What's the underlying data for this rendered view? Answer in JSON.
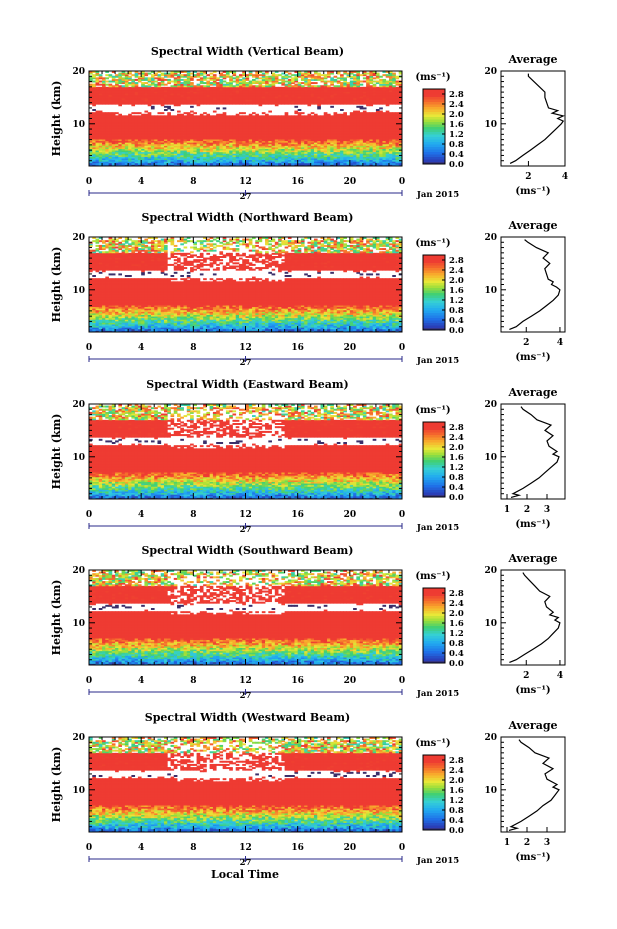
{
  "figure": {
    "xlabel_bottom": "Local Time",
    "date_label": "Jan 2015",
    "day_label": "27",
    "ylabel": "Height (km)",
    "colorbar_unit": "(ms⁻¹)",
    "colorbar_ticks": [
      "2.8",
      "2.4",
      "2.0",
      "1.6",
      "1.2",
      "0.8",
      "0.4",
      "0.0"
    ],
    "x_ticks": [
      "0",
      "4",
      "8",
      "12",
      "16",
      "20",
      "0"
    ],
    "y_ticks": [
      "20",
      "10"
    ],
    "avg_title": "Average",
    "avg_unit": "(ms⁻¹)"
  },
  "chart_data": [
    {
      "type": "heatmap",
      "title": "Spectral Width (Vertical Beam)",
      "xlabel": "Local Time",
      "ylabel": "Height (km)",
      "xlim": [
        0,
        24
      ],
      "ylim": [
        2,
        20
      ],
      "profile": {
        "title": "Average",
        "xticks": [
          "2",
          "4"
        ],
        "xlim": [
          0.5,
          4
        ],
        "unit": "(ms⁻¹)",
        "height": [
          2.5,
          3,
          4,
          5,
          6,
          7,
          8,
          9,
          10,
          10.5,
          11,
          11.5,
          12,
          12.5,
          13,
          14,
          15,
          16,
          17,
          18,
          19,
          19.5
        ],
        "width": [
          1.0,
          1.3,
          1.7,
          2.1,
          2.5,
          2.9,
          3.2,
          3.5,
          3.8,
          3.9,
          3.6,
          3.9,
          3.3,
          3.6,
          3.1,
          3.0,
          2.9,
          2.9,
          2.6,
          2.3,
          2.0,
          2.0
        ]
      }
    },
    {
      "type": "heatmap",
      "title": "Spectral Width (Northward Beam)",
      "xlabel": "Local Time",
      "ylabel": "Height (km)",
      "xlim": [
        0,
        24
      ],
      "ylim": [
        2,
        20
      ],
      "profile": {
        "title": "Average",
        "xticks": [
          "2",
          "4"
        ],
        "xlim": [
          0.5,
          4.3
        ],
        "unit": "(ms⁻¹)",
        "height": [
          2.5,
          3,
          4,
          5,
          6,
          7,
          8,
          9,
          10,
          10.5,
          11,
          11.5,
          12,
          13,
          14,
          15,
          16,
          17,
          18,
          19,
          19.5
        ],
        "width": [
          1.0,
          1.4,
          1.8,
          2.3,
          2.8,
          3.2,
          3.6,
          3.9,
          4.0,
          3.8,
          3.5,
          3.6,
          3.3,
          3.2,
          3.1,
          3.4,
          3.0,
          3.3,
          2.6,
          2.1,
          1.9
        ]
      }
    },
    {
      "type": "heatmap",
      "title": "Spectral Width (Eastward Beam)",
      "xlabel": "Local Time",
      "ylabel": "Height (km)",
      "xlim": [
        0,
        24
      ],
      "ylim": [
        2,
        20
      ],
      "profile": {
        "title": "Average",
        "xticks": [
          "1",
          "2",
          "3"
        ],
        "xlim": [
          0.7,
          3.9
        ],
        "unit": "(ms⁻¹)",
        "height": [
          2.3,
          2.7,
          3,
          4,
          5,
          6,
          7,
          8,
          9,
          10,
          10.5,
          11,
          12,
          13,
          14,
          15,
          16,
          17,
          18,
          19,
          19.5
        ],
        "width": [
          1.2,
          1.6,
          1.3,
          1.8,
          2.2,
          2.6,
          2.9,
          3.2,
          3.5,
          3.6,
          3.3,
          3.5,
          3.1,
          3.0,
          3.3,
          2.9,
          3.2,
          2.5,
          2.2,
          1.8,
          1.7
        ]
      }
    },
    {
      "type": "heatmap",
      "title": "Spectral Width (Southward Beam)",
      "xlabel": "Local Time",
      "ylabel": "Height (km)",
      "xlim": [
        0,
        24
      ],
      "ylim": [
        2,
        20
      ],
      "profile": {
        "title": "Average",
        "xticks": [
          "2",
          "4"
        ],
        "xlim": [
          0.5,
          4.3
        ],
        "unit": "(ms⁻¹)",
        "height": [
          2.5,
          3,
          4,
          5,
          6,
          7,
          8,
          9,
          10,
          10.5,
          11,
          11.5,
          12,
          13,
          14,
          15,
          16,
          17,
          18,
          19,
          19.5
        ],
        "width": [
          1.0,
          1.4,
          1.9,
          2.4,
          2.9,
          3.3,
          3.6,
          3.9,
          4.0,
          3.7,
          3.9,
          3.4,
          3.6,
          3.2,
          3.1,
          3.4,
          2.8,
          2.5,
          2.2,
          1.9,
          1.8
        ]
      }
    },
    {
      "type": "heatmap",
      "title": "Spectral Width (Westward Beam)",
      "xlabel": "Local Time",
      "ylabel": "Height (km)",
      "xlim": [
        0,
        24
      ],
      "ylim": [
        2,
        20
      ],
      "profile": {
        "title": "Average",
        "xticks": [
          "1",
          "2",
          "3"
        ],
        "xlim": [
          0.7,
          3.9
        ],
        "unit": "(ms⁻¹)",
        "height": [
          2.3,
          2.7,
          3,
          4,
          5,
          6,
          7,
          8,
          9,
          10,
          10.5,
          11,
          12,
          13,
          14,
          15,
          16,
          17,
          18,
          19,
          19.5
        ],
        "width": [
          1.1,
          1.5,
          1.2,
          1.7,
          2.1,
          2.5,
          2.8,
          3.2,
          3.4,
          3.6,
          3.3,
          3.5,
          3.0,
          2.9,
          3.3,
          2.8,
          3.1,
          2.4,
          2.1,
          1.7,
          1.6
        ]
      }
    }
  ]
}
